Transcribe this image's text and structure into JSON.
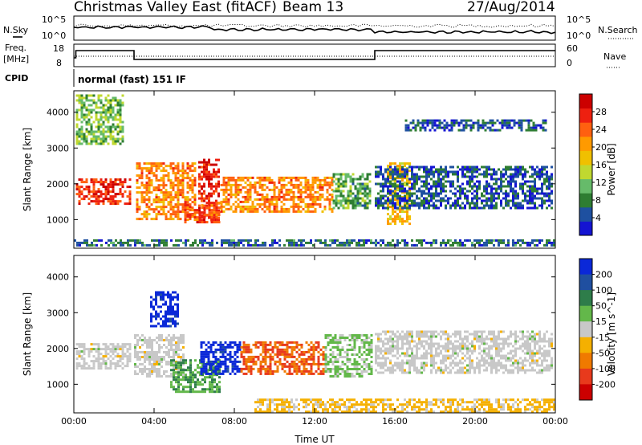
{
  "header": {
    "title": "Christmas Valley East (fitACF)",
    "beam": "Beam 13",
    "date": "27/Aug/2014"
  },
  "summary_panels": {
    "nsky_label": "N.Sky",
    "nsky_ticks": [
      "10^5",
      "10^0"
    ],
    "nsearch_label": "N.Search",
    "nsearch_ticks": [
      "10^5",
      "10^0"
    ],
    "freq_label": "Freq.",
    "freq_unit": "[MHz]",
    "freq_ticks": [
      "18",
      "8"
    ],
    "nave_label": "Nave",
    "nave_ticks": [
      "60",
      "0"
    ],
    "cpid_label": "CPID",
    "cpid_value": "normal (fast) 151 IF"
  },
  "colors": {
    "power": [
      "#1414d2",
      "#1e50a0",
      "#2e7d32",
      "#66bb6a",
      "#c0d830",
      "#f0c000",
      "#ff9a00",
      "#ff6010",
      "#ee2010",
      "#cc0000"
    ],
    "velocity": [
      "#0a28d8",
      "#1f4fa0",
      "#2e7d4a",
      "#63b84a",
      "#c8c8c8",
      "#f5b000",
      "#f07a00",
      "#e83a1c",
      "#cc0000"
    ]
  },
  "chart_data": [
    {
      "type": "heatmap",
      "name": "power",
      "xlabel": "Time UT",
      "ylabel": "Slant Range [km]",
      "x_ticks": [
        "00:00",
        "04:00",
        "08:00",
        "12:00",
        "16:00",
        "20:00",
        "00:00"
      ],
      "xlim_hours": [
        0,
        24
      ],
      "y_ticks": [
        1000,
        2000,
        3000,
        4000
      ],
      "ylim": [
        200,
        4600
      ],
      "colorbar": {
        "label": "Power [dB]",
        "ticks": [
          4,
          8,
          12,
          16,
          20,
          24,
          28
        ],
        "range": [
          0,
          32
        ]
      },
      "regions": [
        {
          "x": [
            0.1,
            2.8
          ],
          "y": [
            1450,
            2150
          ],
          "level": 27
        },
        {
          "x": [
            0.1,
            2.5
          ],
          "y": [
            3100,
            4500
          ],
          "level": 12
        },
        {
          "x": [
            3.1,
            6.0
          ],
          "y": [
            1050,
            2600
          ],
          "level": 22
        },
        {
          "x": [
            6.2,
            7.2
          ],
          "y": [
            1000,
            2700
          ],
          "level": 27
        },
        {
          "x": [
            5.5,
            7.3
          ],
          "y": [
            900,
            1500
          ],
          "level": 25
        },
        {
          "x": [
            7.3,
            12.9
          ],
          "y": [
            1200,
            2200
          ],
          "level": 22
        },
        {
          "x": [
            12.9,
            14.8
          ],
          "y": [
            1300,
            2300
          ],
          "level": 10
        },
        {
          "x": [
            15.6,
            16.8
          ],
          "y": [
            900,
            2600
          ],
          "level": 18
        },
        {
          "x": [
            15.0,
            23.8
          ],
          "y": [
            1300,
            2500
          ],
          "level": 5
        },
        {
          "x": [
            16.5,
            23.5
          ],
          "y": [
            3500,
            3800
          ],
          "level": 5
        },
        {
          "x": [
            0.0,
            24.0
          ],
          "y": [
            250,
            450
          ],
          "level": 6
        }
      ]
    },
    {
      "type": "heatmap",
      "name": "velocity",
      "xlabel": "Time UT",
      "ylabel": "Slant Range [km]",
      "x_ticks": [
        "00:00",
        "04:00",
        "08:00",
        "12:00",
        "16:00",
        "20:00",
        "00:00"
      ],
      "xlim_hours": [
        0,
        24
      ],
      "y_ticks": [
        1000,
        2000,
        3000,
        4000
      ],
      "ylim": [
        200,
        4600
      ],
      "colorbar": {
        "label": "Velocity [m s^-1]",
        "ticks": [
          200,
          100,
          50,
          15,
          -15,
          -50,
          -100,
          -200
        ],
        "range": [
          -250,
          250
        ]
      },
      "regions": [
        {
          "x": [
            0.1,
            2.8
          ],
          "y": [
            1450,
            2150
          ],
          "level": 0
        },
        {
          "x": [
            3.0,
            5.5
          ],
          "y": [
            1200,
            2400
          ],
          "level": 0
        },
        {
          "x": [
            4.8,
            7.3
          ],
          "y": [
            800,
            1700
          ],
          "level": 80
        },
        {
          "x": [
            6.3,
            8.3
          ],
          "y": [
            1300,
            2200
          ],
          "level": 220
        },
        {
          "x": [
            8.3,
            12.5
          ],
          "y": [
            1300,
            2200
          ],
          "level": -140
        },
        {
          "x": [
            12.5,
            14.8
          ],
          "y": [
            1200,
            2400
          ],
          "level": 40
        },
        {
          "x": [
            15.0,
            23.8
          ],
          "y": [
            1300,
            2500
          ],
          "level": 0
        },
        {
          "x": [
            3.8,
            5.2
          ],
          "y": [
            2600,
            3600
          ],
          "level": 220
        },
        {
          "x": [
            9.0,
            24.0
          ],
          "y": [
            250,
            600
          ],
          "level": -40
        }
      ]
    }
  ]
}
